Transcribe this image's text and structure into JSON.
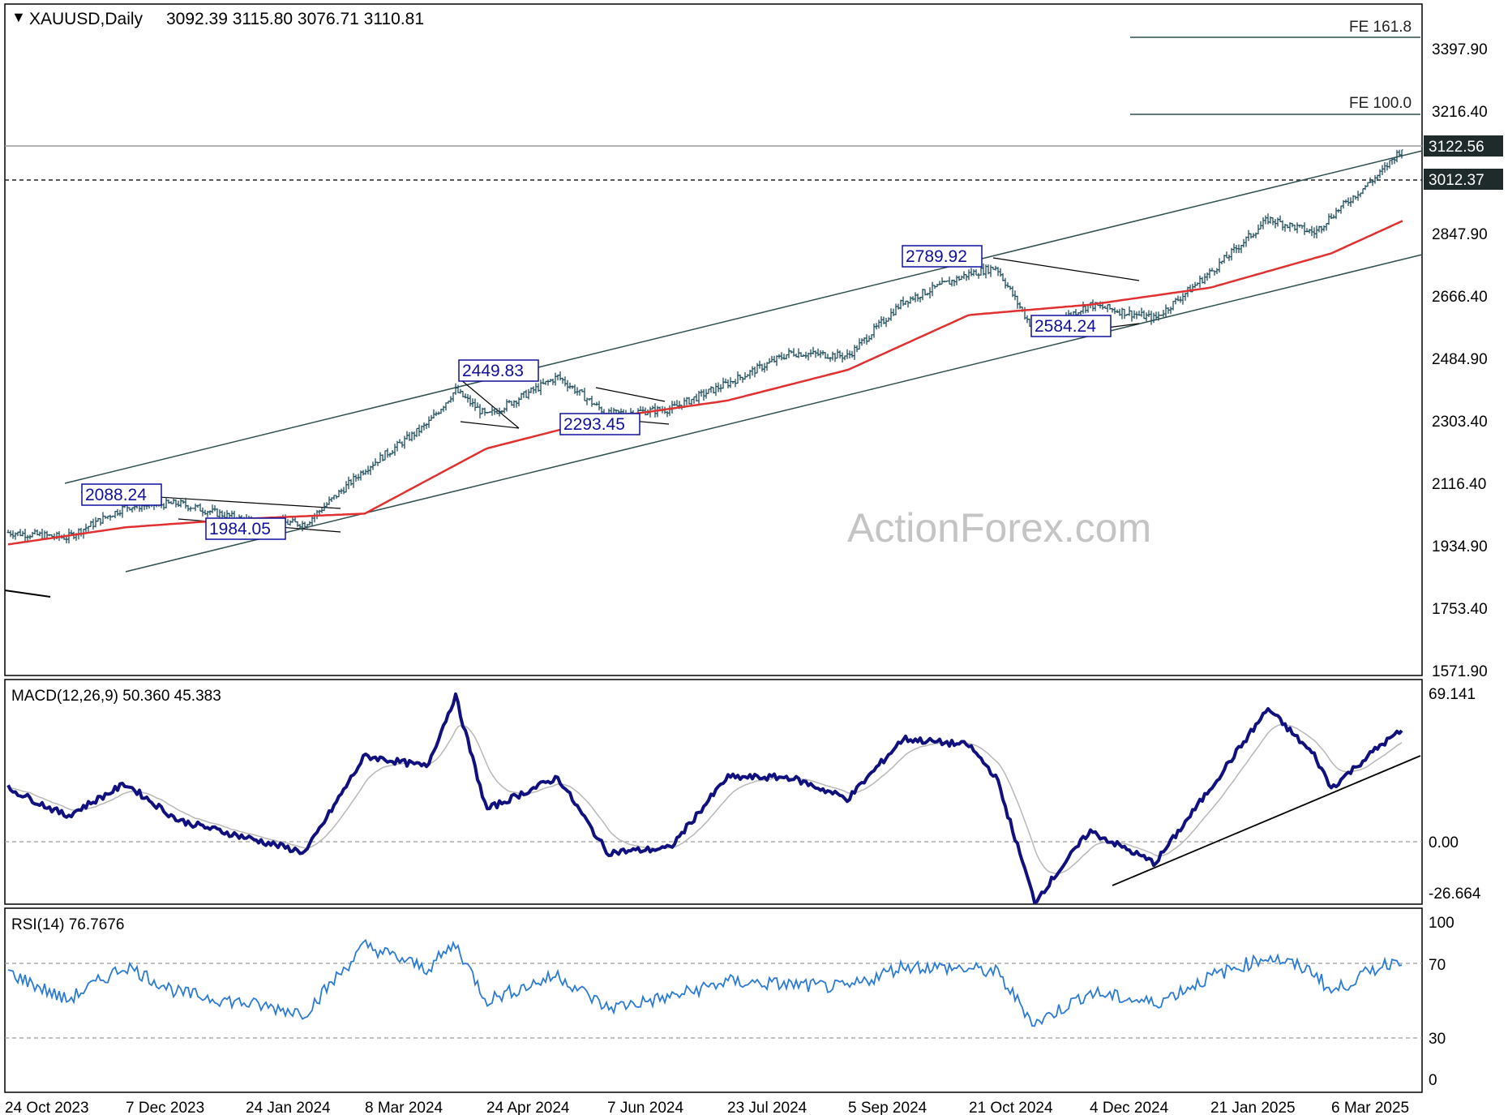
{
  "colors": {
    "price": "#1f4e5f",
    "ema": "#e03030",
    "channel": "#2f4f4f",
    "macd": "#10107f",
    "signal": "#b8b8b8",
    "rsi": "#2b7bd6",
    "label_box": "#1010a0",
    "watermark": "#c4c4c4",
    "tag_bg": "#1f2a2a"
  },
  "watermark": "ActionForex.com",
  "chart_data": [
    {
      "type": "ohlc",
      "title": "XAUUSD,Daily",
      "ohlc_header": "3092.39 3115.80 3076.71 3110.81",
      "y_ticks": [
        "3397.90",
        "3216.40",
        "2847.90",
        "2666.40",
        "2484.90",
        "2303.40",
        "2116.40",
        "1934.90",
        "1753.40",
        "1571.90"
      ],
      "ylim": [
        1571.9,
        3460
      ],
      "price_tags": [
        "3122.56",
        "3012.37"
      ],
      "fib_labels": [
        "FE 161.8",
        "FE 100.0"
      ],
      "fib_levels": [
        3440,
        3216.4
      ],
      "annotations": [
        "2088.24",
        "1984.05",
        "2449.83",
        "2293.45",
        "2789.92",
        "2584.24"
      ],
      "x_ticks": [
        "24 Oct 2023",
        "7 Dec 2023",
        "24 Jan 2024",
        "8 Mar 2024",
        "24 Apr 2024",
        "7 Jun 2024",
        "23 Jul 2024",
        "5 Sep 2024",
        "21 Oct 2024",
        "4 Dec 2024",
        "21 Jan 2025",
        "6 Mar 2025"
      ],
      "close_series": [
        {
          "date": "24 Oct 2023",
          "value": 1985
        },
        {
          "date": "15 Nov 2023",
          "value": 1970
        },
        {
          "date": "7 Dec 2023",
          "value": 2060
        },
        {
          "date": "28 Dec 2023",
          "value": 2070
        },
        {
          "date": "24 Jan 2024",
          "value": 2020
        },
        {
          "date": "15 Feb 2024",
          "value": 2010
        },
        {
          "date": "8 Mar 2024",
          "value": 2170
        },
        {
          "date": "1 Apr 2024",
          "value": 2300
        },
        {
          "date": "12 Apr 2024",
          "value": 2400
        },
        {
          "date": "24 Apr 2024",
          "value": 2325
        },
        {
          "date": "20 May 2024",
          "value": 2440
        },
        {
          "date": "7 Jun 2024",
          "value": 2330
        },
        {
          "date": "1 Jul 2024",
          "value": 2345
        },
        {
          "date": "23 Jul 2024",
          "value": 2420
        },
        {
          "date": "15 Aug 2024",
          "value": 2510
        },
        {
          "date": "5 Sep 2024",
          "value": 2500
        },
        {
          "date": "26 Sep 2024",
          "value": 2660
        },
        {
          "date": "21 Oct 2024",
          "value": 2740
        },
        {
          "date": "31 Oct 2024",
          "value": 2760
        },
        {
          "date": "14 Nov 2024",
          "value": 2570
        },
        {
          "date": "4 Dec 2024",
          "value": 2650
        },
        {
          "date": "30 Dec 2024",
          "value": 2610
        },
        {
          "date": "21 Jan 2025",
          "value": 2745
        },
        {
          "date": "11 Feb 2025",
          "value": 2900
        },
        {
          "date": "28 Feb 2025",
          "value": 2860
        },
        {
          "date": "6 Mar 2025",
          "value": 2910
        },
        {
          "date": "24 Mar 2025",
          "value": 3035
        },
        {
          "date": "1 Apr 2025",
          "value": 3110
        }
      ],
      "ema_series": [
        {
          "date": "24 Oct 2023",
          "value": 1950
        },
        {
          "date": "7 Dec 2023",
          "value": 2000
        },
        {
          "date": "24 Jan 2024",
          "value": 2025
        },
        {
          "date": "8 Mar 2024",
          "value": 2040
        },
        {
          "date": "24 Apr 2024",
          "value": 2230
        },
        {
          "date": "7 Jun 2024",
          "value": 2320
        },
        {
          "date": "23 Jul 2024",
          "value": 2370
        },
        {
          "date": "5 Sep 2024",
          "value": 2460
        },
        {
          "date": "21 Oct 2024",
          "value": 2620
        },
        {
          "date": "4 Dec 2024",
          "value": 2650
        },
        {
          "date": "21 Jan 2025",
          "value": 2700
        },
        {
          "date": "6 Mar 2025",
          "value": 2800
        },
        {
          "date": "1 Apr 2025",
          "value": 2895
        }
      ]
    },
    {
      "type": "line",
      "title": "MACD(12,26,9) 50.360 45.383",
      "y_ticks": [
        "69.141",
        "0.00",
        "-26.664"
      ],
      "ylim": [
        -35,
        75
      ],
      "series": [
        {
          "name": "MACD",
          "values": [
            {
              "date": "24 Oct 2023",
              "value": 25
            },
            {
              "date": "15 Nov 2023",
              "value": 12
            },
            {
              "date": "7 Dec 2023",
              "value": 27
            },
            {
              "date": "28 Dec 2023",
              "value": 10
            },
            {
              "date": "24 Jan 2024",
              "value": 2
            },
            {
              "date": "15 Feb 2024",
              "value": -5
            },
            {
              "date": "8 Mar 2024",
              "value": 40
            },
            {
              "date": "1 Apr 2024",
              "value": 35
            },
            {
              "date": "12 Apr 2024",
              "value": 68
            },
            {
              "date": "24 Apr 2024",
              "value": 15
            },
            {
              "date": "20 May 2024",
              "value": 30
            },
            {
              "date": "7 Jun 2024",
              "value": -5
            },
            {
              "date": "1 Jul 2024",
              "value": -3
            },
            {
              "date": "23 Jul 2024",
              "value": 30
            },
            {
              "date": "15 Aug 2024",
              "value": 30
            },
            {
              "date": "5 Sep 2024",
              "value": 20
            },
            {
              "date": "26 Sep 2024",
              "value": 48
            },
            {
              "date": "21 Oct 2024",
              "value": 45
            },
            {
              "date": "31 Oct 2024",
              "value": 30
            },
            {
              "date": "14 Nov 2024",
              "value": -28
            },
            {
              "date": "4 Dec 2024",
              "value": 5
            },
            {
              "date": "30 Dec 2024",
              "value": -10
            },
            {
              "date": "21 Jan 2025",
              "value": 25
            },
            {
              "date": "11 Feb 2025",
              "value": 62
            },
            {
              "date": "28 Feb 2025",
              "value": 40
            },
            {
              "date": "6 Mar 2025",
              "value": 25
            },
            {
              "date": "24 Mar 2025",
              "value": 45
            },
            {
              "date": "1 Apr 2025",
              "value": 52
            }
          ]
        }
      ]
    },
    {
      "type": "line",
      "title": "RSI(14) 76.7676",
      "y_ticks": [
        "100",
        "70",
        "30",
        "0"
      ],
      "ylim": [
        0,
        100
      ],
      "series": [
        {
          "name": "RSI",
          "values": [
            {
              "date": "24 Oct 2023",
              "value": 68
            },
            {
              "date": "15 Nov 2023",
              "value": 50
            },
            {
              "date": "7 Dec 2023",
              "value": 72
            },
            {
              "date": "28 Dec 2023",
              "value": 55
            },
            {
              "date": "24 Jan 2024",
              "value": 48
            },
            {
              "date": "15 Feb 2024",
              "value": 42
            },
            {
              "date": "8 Mar 2024",
              "value": 85
            },
            {
              "date": "1 Apr 2024",
              "value": 70
            },
            {
              "date": "12 Apr 2024",
              "value": 86
            },
            {
              "date": "24 Apr 2024",
              "value": 50
            },
            {
              "date": "20 May 2024",
              "value": 66
            },
            {
              "date": "7 Jun 2024",
              "value": 45
            },
            {
              "date": "1 Jul 2024",
              "value": 52
            },
            {
              "date": "23 Jul 2024",
              "value": 62
            },
            {
              "date": "15 Aug 2024",
              "value": 60
            },
            {
              "date": "5 Sep 2024",
              "value": 58
            },
            {
              "date": "26 Sep 2024",
              "value": 72
            },
            {
              "date": "21 Oct 2024",
              "value": 70
            },
            {
              "date": "31 Oct 2024",
              "value": 68
            },
            {
              "date": "14 Nov 2024",
              "value": 35
            },
            {
              "date": "4 Dec 2024",
              "value": 55
            },
            {
              "date": "30 Dec 2024",
              "value": 48
            },
            {
              "date": "21 Jan 2025",
              "value": 65
            },
            {
              "date": "11 Feb 2025",
              "value": 78
            },
            {
              "date": "28 Feb 2025",
              "value": 68
            },
            {
              "date": "6 Mar 2025",
              "value": 55
            },
            {
              "date": "24 Mar 2025",
              "value": 72
            },
            {
              "date": "1 Apr 2025",
              "value": 77
            }
          ]
        }
      ]
    }
  ]
}
